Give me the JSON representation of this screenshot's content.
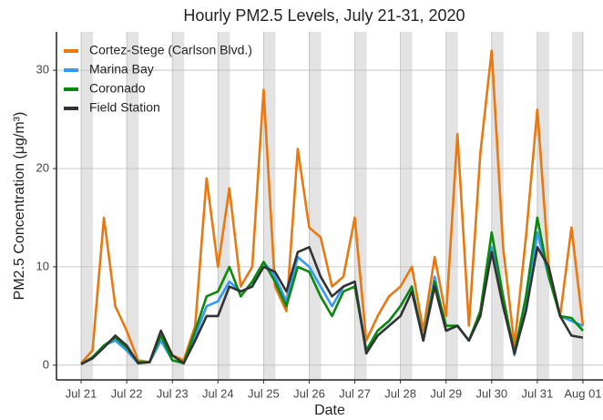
{
  "chart_data": {
    "type": "line",
    "title": "Hourly PM2.5 Levels, July 21-31, 2020",
    "x_label": "Date",
    "y_label": "PM2.5 Concentration (μg/m³)",
    "xlim": [
      -0.54,
      11.44
    ],
    "ylim": [
      -1.5,
      33.9
    ],
    "xticks": [
      {
        "value": 0,
        "label": "Jul 21"
      },
      {
        "value": 1,
        "label": "Jul 22"
      },
      {
        "value": 2,
        "label": "Jul 23"
      },
      {
        "value": 3,
        "label": "Jul 24"
      },
      {
        "value": 4,
        "label": "Jul 25"
      },
      {
        "value": 5,
        "label": "Jul 26"
      },
      {
        "value": 6,
        "label": "Jul 27"
      },
      {
        "value": 7,
        "label": "Jul 28"
      },
      {
        "value": 8,
        "label": "Jul 29"
      },
      {
        "value": 9,
        "label": "Jul 30"
      },
      {
        "value": 10,
        "label": "Jul 31"
      },
      {
        "value": 11,
        "label": "Aug 01"
      }
    ],
    "yticks": [
      0,
      10,
      20,
      30
    ],
    "grid": true,
    "legend_position": "top-left",
    "shaded_intervals": [
      [
        0,
        0.26
      ],
      [
        1,
        1.26
      ],
      [
        2,
        2.26
      ],
      [
        3,
        3.26
      ],
      [
        4,
        4.26
      ],
      [
        5,
        5.26
      ],
      [
        6,
        6.26
      ],
      [
        7,
        7.26
      ],
      [
        8,
        8.26
      ],
      [
        9,
        9.26
      ],
      [
        10,
        10.26
      ],
      [
        10.76,
        11.0
      ]
    ],
    "shade_color": "#e3e3e3",
    "x": [
      0,
      0.25,
      0.5,
      0.75,
      1,
      1.25,
      1.5,
      1.75,
      2,
      2.25,
      2.5,
      2.75,
      3,
      3.25,
      3.5,
      3.75,
      4,
      4.25,
      4.5,
      4.75,
      5,
      5.25,
      5.5,
      5.75,
      6,
      6.25,
      6.5,
      6.75,
      7,
      7.25,
      7.5,
      7.75,
      8,
      8.25,
      8.5,
      8.75,
      9,
      9.25,
      9.5,
      9.75,
      10,
      10.25,
      10.5,
      10.75,
      11
    ],
    "series": [
      {
        "name": "Cortez-Stege (Carlson Blvd.)",
        "color": "#e8780f",
        "values": [
          0.2,
          1.5,
          15,
          6,
          3.5,
          0.5,
          0.3,
          3,
          1,
          0.5,
          4,
          19,
          10,
          18,
          8,
          10,
          28,
          8,
          5.5,
          22,
          14,
          13,
          8,
          9,
          15,
          2.5,
          5,
          7,
          8,
          10,
          3.5,
          11,
          5,
          23.5,
          4,
          21.5,
          32,
          12,
          2,
          13,
          26,
          10,
          5,
          14,
          4
        ]
      },
      {
        "name": "Marina Bay",
        "color": "#3399ff",
        "values": [
          0.1,
          0.8,
          2,
          2.5,
          1.5,
          0.2,
          0.3,
          2.5,
          0.5,
          0.2,
          3,
          6,
          6.5,
          8.5,
          7.5,
          8,
          10.5,
          9,
          6.5,
          11,
          10,
          8,
          6,
          8,
          8.5,
          1.5,
          3.5,
          4.5,
          6,
          8,
          2.5,
          9,
          3.5,
          4,
          2.5,
          5,
          12,
          7,
          1,
          6,
          13.5,
          9,
          5,
          4.5,
          4
        ]
      },
      {
        "name": "Coronado",
        "color": "#0a8a0a",
        "values": [
          0.1,
          0.8,
          2,
          2.8,
          1.8,
          0.3,
          0.3,
          3,
          0.5,
          0.2,
          3.5,
          7,
          7.5,
          10,
          7,
          8.5,
          10.5,
          8.5,
          6,
          10,
          9.5,
          7,
          5,
          7.5,
          8,
          1.5,
          3.5,
          4.5,
          6,
          8,
          2.5,
          8.5,
          4,
          4,
          2.5,
          5.5,
          13.5,
          7,
          1.2,
          7,
          15,
          9,
          5,
          4.8,
          3.5
        ]
      },
      {
        "name": "Field Station",
        "color": "#333333",
        "values": [
          0.1,
          0.7,
          1.8,
          3,
          2,
          0.2,
          0.3,
          3.5,
          1,
          0.2,
          2.5,
          5,
          5,
          8,
          7.5,
          8,
          10,
          9.5,
          7.5,
          11.5,
          12,
          9,
          7,
          8,
          8.5,
          1.2,
          3,
          4,
          5,
          7.5,
          2.5,
          8,
          3.5,
          4,
          2.5,
          5,
          11.5,
          6,
          1.2,
          5.5,
          12,
          10,
          5,
          3,
          2.8
        ]
      }
    ]
  }
}
